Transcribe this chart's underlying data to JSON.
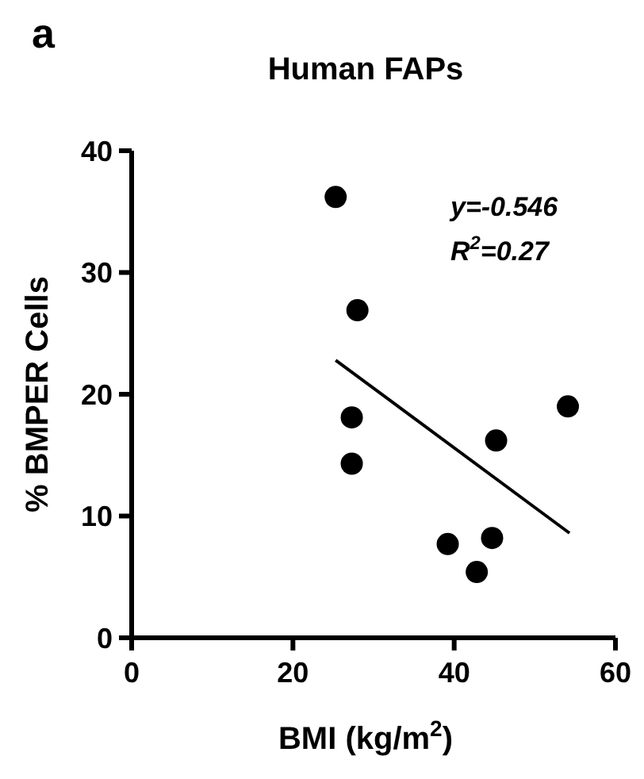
{
  "chart_data": {
    "type": "scatter",
    "title": "Human FAPs",
    "xlabel": "BMI (kg/m$^{2}$)",
    "ylabel": "% BMPER Cells",
    "xlim": [
      0,
      60
    ],
    "xticks": [
      0,
      20,
      40,
      60
    ],
    "ylim": [
      0,
      40
    ],
    "yticks": [
      0,
      10,
      20,
      30,
      40
    ],
    "grid": false,
    "marker": "circle",
    "annotations": [
      "a",
      "y=-0.546",
      "R$^{2}$=0.27"
    ],
    "series": [
      {
        "color": "#000000",
        "x": [
          25.3,
          28.0,
          27.3,
          27.3,
          39.2,
          42.8,
          44.7,
          45.2,
          54.1
        ],
        "values": [
          36.2,
          26.9,
          18.1,
          14.3,
          7.7,
          5.4,
          8.2,
          16.2,
          19.0
        ]
      },
      {
        "type": "line",
        "color": "#000000",
        "marker": "none",
        "x": [
          25.3,
          54.3
        ],
        "values": [
          22.8,
          8.6
        ]
      }
    ]
  }
}
